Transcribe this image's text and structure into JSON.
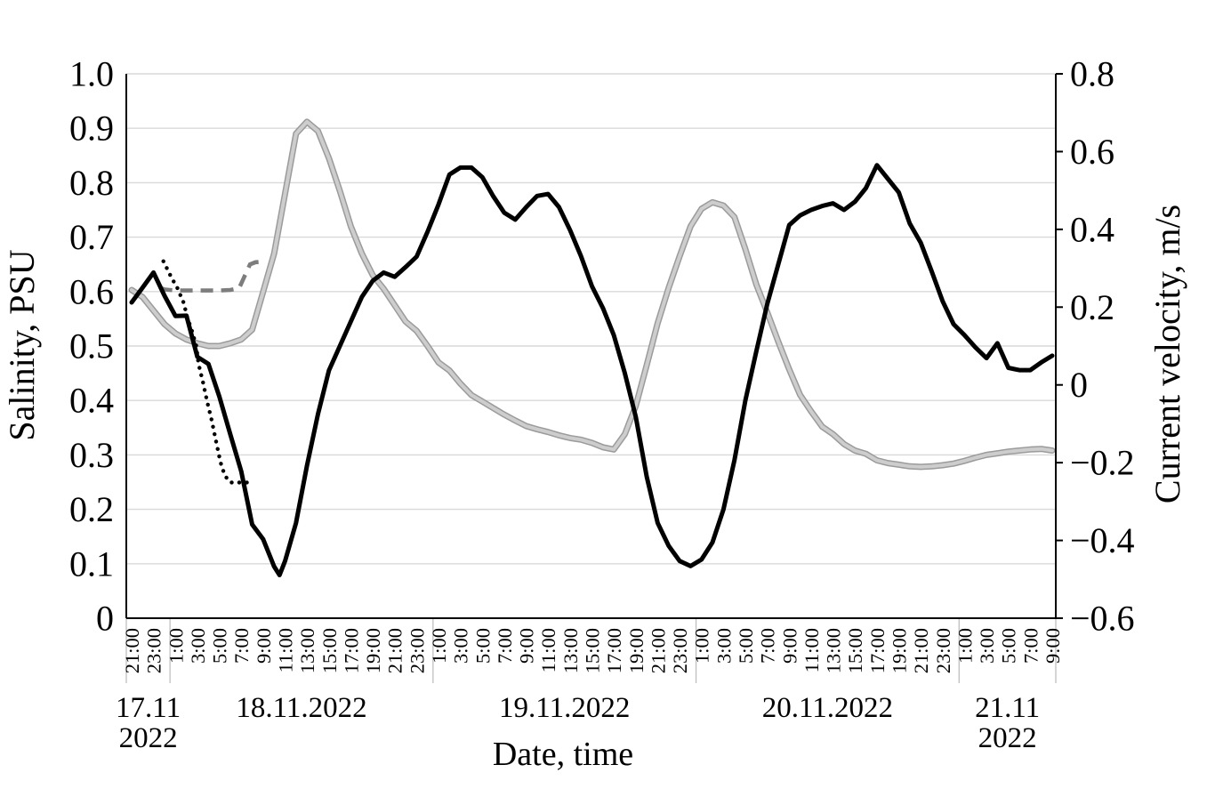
{
  "background": "#ffffff",
  "chart_data": {
    "type": "line",
    "title": "",
    "xlabel": "Date, time",
    "ylabel_left": "Salinity, PSU",
    "ylabel_right": "Current velocity, m/s",
    "grid": "horizontal",
    "legend": "none",
    "colors": {
      "grid_line": "#d9d9d9",
      "axis_line": "#000000",
      "day_separator": "#bfbfbf",
      "gray_series_core": "#cdcdcd",
      "gray_series_edge": "#9b9b9b",
      "gray_dashed": "#7d7d7d",
      "black_series": "#000000"
    },
    "left_axis": {
      "label": "Salinity, PSU",
      "min": 0,
      "max": 1.0,
      "tick_labels": [
        "1.0",
        "0.9",
        "0.8",
        "0.7",
        "0.6",
        "0.5",
        "0.4",
        "0.3",
        "0.2",
        "0.1",
        "0"
      ],
      "tick_values": [
        1.0,
        0.9,
        0.8,
        0.7,
        0.6,
        0.5,
        0.4,
        0.3,
        0.2,
        0.1,
        0
      ]
    },
    "right_axis": {
      "label": "Current velocity, m/s",
      "min": -0.6,
      "max": 0.8,
      "tick_labels": [
        "0.8",
        "0.6",
        "0.4",
        "0.2",
        "0",
        "−0.2",
        "−0.4",
        "−0.6"
      ],
      "tick_values": [
        0.8,
        0.6,
        0.4,
        0.2,
        0,
        -0.2,
        -0.4,
        -0.6
      ]
    },
    "x_axis": {
      "unit_hours_from": "17.11.2022 21:00",
      "tick_step_hours": 2,
      "tick_labels": [
        "21:00",
        "23:00",
        "1:00",
        "3:00",
        "5:00",
        "7:00",
        "9:00",
        "11:00",
        "13:00",
        "15:00",
        "17:00",
        "19:00",
        "21:00",
        "23:00",
        "1:00",
        "3:00",
        "5:00",
        "7:00",
        "9:00",
        "11:00",
        "13:00",
        "15:00",
        "17:00",
        "19:00",
        "21:00",
        "23:00",
        "1:00",
        "3:00",
        "5:00",
        "7:00",
        "9:00",
        "11:00",
        "13:00",
        "15:00",
        "17:00",
        "19:00",
        "21:00",
        "23:00",
        "1:00",
        "3:00",
        "5:00",
        "7:00",
        "9:00"
      ],
      "date_groups": [
        {
          "lines": [
            "17.11",
            "2022"
          ]
        },
        {
          "lines": [
            "18.11.2022"
          ]
        },
        {
          "lines": [
            "19.11.2022"
          ]
        },
        {
          "lines": [
            "20.11.2022"
          ]
        },
        {
          "lines": [
            "21.11",
            "2022"
          ]
        }
      ],
      "day_boundaries_hours": [
        3.5,
        27.5,
        51.5,
        75.5
      ]
    },
    "series": [
      {
        "name": "gray-solid (salinity, left axis)",
        "axis": "left",
        "unit": "PSU",
        "style": "solid",
        "color": "#cdcdcd",
        "points": [
          [
            0,
            0.603
          ],
          [
            1,
            0.59
          ],
          [
            2,
            0.565
          ],
          [
            3,
            0.54
          ],
          [
            4,
            0.523
          ],
          [
            5,
            0.512
          ],
          [
            6,
            0.505
          ],
          [
            7,
            0.5
          ],
          [
            8,
            0.5
          ],
          [
            9,
            0.505
          ],
          [
            10,
            0.512
          ],
          [
            11,
            0.53
          ],
          [
            12,
            0.6
          ],
          [
            13,
            0.67
          ],
          [
            14,
            0.78
          ],
          [
            15,
            0.89
          ],
          [
            16,
            0.912
          ],
          [
            17,
            0.895
          ],
          [
            18,
            0.845
          ],
          [
            19,
            0.785
          ],
          [
            20,
            0.72
          ],
          [
            21,
            0.67
          ],
          [
            22,
            0.63
          ],
          [
            23,
            0.605
          ],
          [
            24,
            0.575
          ],
          [
            25,
            0.545
          ],
          [
            26,
            0.528
          ],
          [
            27,
            0.5
          ],
          [
            28,
            0.47
          ],
          [
            29,
            0.455
          ],
          [
            30,
            0.431
          ],
          [
            31,
            0.41
          ],
          [
            32,
            0.398
          ],
          [
            33,
            0.386
          ],
          [
            34,
            0.374
          ],
          [
            35,
            0.363
          ],
          [
            36,
            0.353
          ],
          [
            37,
            0.347
          ],
          [
            38,
            0.342
          ],
          [
            39,
            0.336
          ],
          [
            40,
            0.331
          ],
          [
            41,
            0.328
          ],
          [
            42,
            0.322
          ],
          [
            43,
            0.314
          ],
          [
            44,
            0.31
          ],
          [
            45,
            0.338
          ],
          [
            46,
            0.39
          ],
          [
            47,
            0.465
          ],
          [
            48,
            0.542
          ],
          [
            49,
            0.607
          ],
          [
            50,
            0.665
          ],
          [
            51,
            0.72
          ],
          [
            52,
            0.752
          ],
          [
            53,
            0.764
          ],
          [
            54,
            0.758
          ],
          [
            55,
            0.737
          ],
          [
            56,
            0.678
          ],
          [
            57,
            0.613
          ],
          [
            58,
            0.562
          ],
          [
            59,
            0.508
          ],
          [
            60,
            0.457
          ],
          [
            61,
            0.41
          ],
          [
            62,
            0.38
          ],
          [
            63,
            0.352
          ],
          [
            64,
            0.338
          ],
          [
            65,
            0.32
          ],
          [
            66,
            0.308
          ],
          [
            67,
            0.302
          ],
          [
            68,
            0.29
          ],
          [
            69,
            0.285
          ],
          [
            70,
            0.282
          ],
          [
            71,
            0.279
          ],
          [
            72,
            0.278
          ],
          [
            73,
            0.279
          ],
          [
            74,
            0.281
          ],
          [
            75,
            0.284
          ],
          [
            76,
            0.289
          ],
          [
            77,
            0.295
          ],
          [
            78,
            0.3
          ],
          [
            79,
            0.303
          ],
          [
            80,
            0.306
          ],
          [
            81,
            0.308
          ],
          [
            82,
            0.31
          ],
          [
            83,
            0.311
          ],
          [
            84,
            0.308
          ]
        ]
      },
      {
        "name": "gray-dashed (salinity, left axis)",
        "axis": "left",
        "unit": "PSU",
        "style": "dashed",
        "color": "#7d7d7d",
        "points": [
          [
            2.6,
            0.607
          ],
          [
            3,
            0.604
          ],
          [
            4,
            0.602
          ],
          [
            5,
            0.602
          ],
          [
            6,
            0.602
          ],
          [
            7,
            0.602
          ],
          [
            8,
            0.602
          ],
          [
            9,
            0.603
          ],
          [
            9.8,
            0.606
          ],
          [
            10.3,
            0.628
          ],
          [
            10.8,
            0.65
          ],
          [
            11.3,
            0.654
          ],
          [
            12,
            0.655
          ]
        ]
      },
      {
        "name": "black-solid (current velocity, right axis)",
        "axis": "right",
        "unit": "m/s",
        "style": "solid",
        "color": "#000000",
        "points": [
          [
            0,
            0.212
          ],
          [
            1,
            0.25
          ],
          [
            2,
            0.289
          ],
          [
            3,
            0.229
          ],
          [
            4,
            0.177
          ],
          [
            5,
            0.178
          ],
          [
            6,
            0.072
          ],
          [
            7,
            0.054
          ],
          [
            8,
            -0.03
          ],
          [
            9,
            -0.127
          ],
          [
            10,
            -0.222
          ],
          [
            11,
            -0.359
          ],
          [
            12,
            -0.397
          ],
          [
            13,
            -0.467
          ],
          [
            13.5,
            -0.489
          ],
          [
            14,
            -0.453
          ],
          [
            15,
            -0.355
          ],
          [
            16,
            -0.208
          ],
          [
            17,
            -0.075
          ],
          [
            18,
            0.037
          ],
          [
            19,
            0.1
          ],
          [
            20,
            0.163
          ],
          [
            21,
            0.226
          ],
          [
            22,
            0.268
          ],
          [
            23,
            0.289
          ],
          [
            24,
            0.278
          ],
          [
            25,
            0.303
          ],
          [
            26,
            0.33
          ],
          [
            27,
            0.394
          ],
          [
            28,
            0.464
          ],
          [
            29,
            0.541
          ],
          [
            30,
            0.559
          ],
          [
            31,
            0.559
          ],
          [
            32,
            0.534
          ],
          [
            33,
            0.485
          ],
          [
            34,
            0.443
          ],
          [
            35,
            0.425
          ],
          [
            36,
            0.457
          ],
          [
            37,
            0.486
          ],
          [
            38,
            0.491
          ],
          [
            39,
            0.457
          ],
          [
            40,
            0.398
          ],
          [
            41,
            0.331
          ],
          [
            42,
            0.254
          ],
          [
            43,
            0.198
          ],
          [
            44,
            0.128
          ],
          [
            45,
            0.03
          ],
          [
            46,
            -0.082
          ],
          [
            47,
            -0.236
          ],
          [
            48,
            -0.355
          ],
          [
            49,
            -0.414
          ],
          [
            50,
            -0.453
          ],
          [
            51,
            -0.466
          ],
          [
            52,
            -0.449
          ],
          [
            53,
            -0.405
          ],
          [
            54,
            -0.32
          ],
          [
            55,
            -0.194
          ],
          [
            56,
            -0.04
          ],
          [
            57,
            0.086
          ],
          [
            58,
            0.208
          ],
          [
            59,
            0.31
          ],
          [
            60,
            0.411
          ],
          [
            61,
            0.436
          ],
          [
            62,
            0.45
          ],
          [
            63,
            0.46
          ],
          [
            64,
            0.467
          ],
          [
            65,
            0.45
          ],
          [
            66,
            0.471
          ],
          [
            67,
            0.506
          ],
          [
            68,
            0.565
          ],
          [
            69,
            0.53
          ],
          [
            70,
            0.495
          ],
          [
            71,
            0.415
          ],
          [
            72,
            0.366
          ],
          [
            73,
            0.292
          ],
          [
            74,
            0.215
          ],
          [
            75,
            0.156
          ],
          [
            76,
            0.128
          ],
          [
            77,
            0.096
          ],
          [
            78,
            0.069
          ],
          [
            79,
            0.107
          ],
          [
            80,
            0.044
          ],
          [
            81,
            0.038
          ],
          [
            82,
            0.038
          ],
          [
            83,
            0.058
          ],
          [
            84,
            0.075
          ]
        ]
      },
      {
        "name": "black-dotted (current velocity, right axis)",
        "axis": "right",
        "unit": "m/s",
        "style": "dotted",
        "color": "#000000",
        "points": [
          [
            2.9,
            0.318
          ],
          [
            3.3,
            0.295
          ],
          [
            3.7,
            0.272
          ],
          [
            4.1,
            0.254
          ],
          [
            4.8,
            0.208
          ],
          [
            5,
            0.18
          ],
          [
            5.5,
            0.139
          ],
          [
            5.9,
            0.1
          ],
          [
            6.1,
            0.054
          ],
          [
            6.5,
            0.008
          ],
          [
            6.9,
            -0.044
          ],
          [
            7.3,
            -0.09
          ],
          [
            7.7,
            -0.145
          ],
          [
            8.1,
            -0.198
          ],
          [
            8.5,
            -0.233
          ],
          [
            9,
            -0.251
          ],
          [
            9.7,
            -0.251
          ],
          [
            11,
            -0.251
          ]
        ]
      }
    ]
  }
}
